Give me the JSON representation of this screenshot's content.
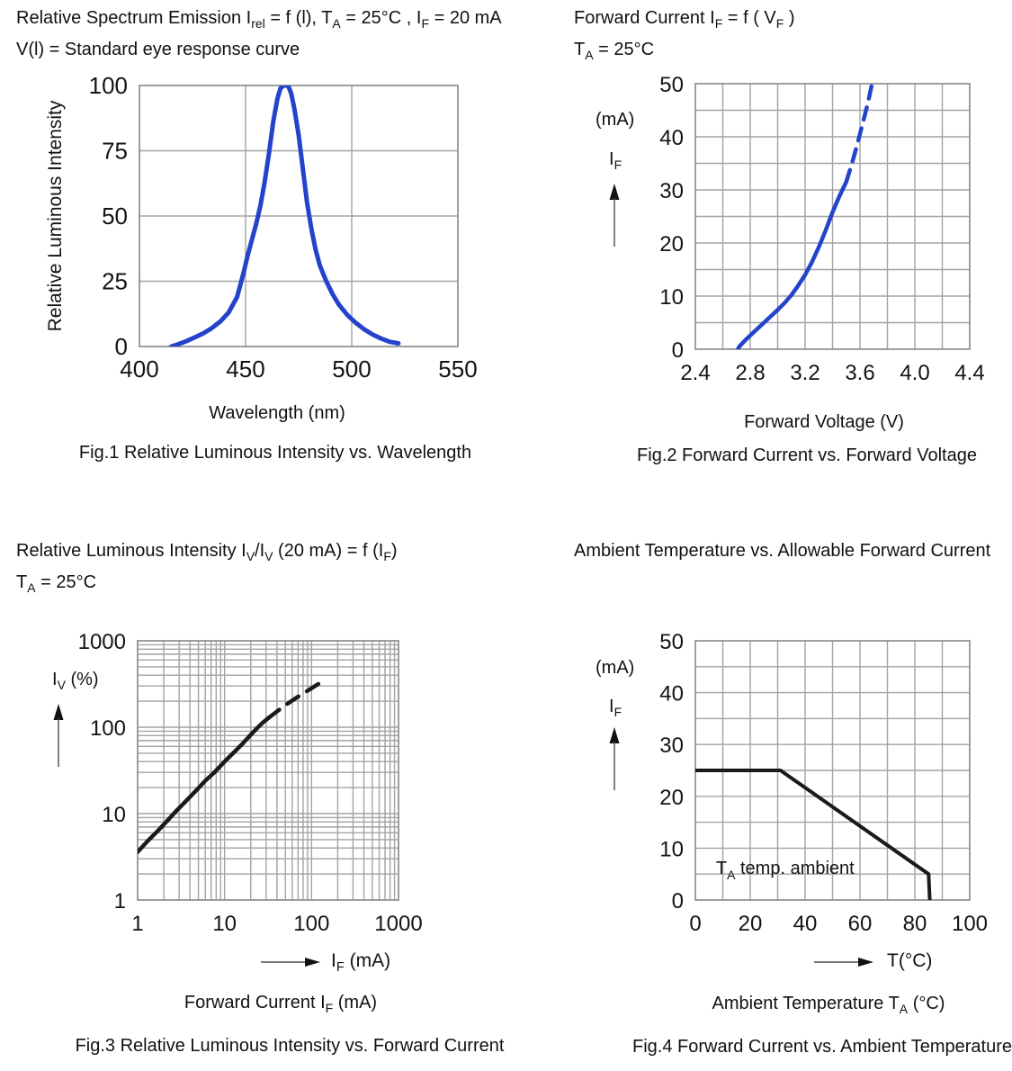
{
  "page_type": "LED datasheet characteristic curves",
  "accent_color": "#2343cb",
  "curve_black": "#1a1a1a",
  "grid_color": "#a3a3a3",
  "chart_data": [
    {
      "id": "fig1",
      "type": "line",
      "header1_html": "Relative Spectrum Emission I<sub>rel</sub> = f (l), T<sub>A</sub> = 25°C , I<sub>F</sub> = 20 mA",
      "header2_html": "V(l) = Standard eye response curve",
      "xlabel": "Wavelength (nm)",
      "ylabel": "Relative Luminous Intensity",
      "caption": "Fig.1 Relative Luminous Intensity vs. Wavelength",
      "x_axis": {
        "scale": "linear",
        "min": 400,
        "max": 550,
        "ticks": [
          "400",
          "450",
          "500",
          "550"
        ],
        "tick_values": [
          400,
          450,
          500,
          550
        ],
        "grid": [
          450,
          500
        ]
      },
      "y_axis": {
        "scale": "linear",
        "min": 0,
        "max": 100,
        "ticks": [
          "0",
          "25",
          "50",
          "75",
          "100"
        ],
        "tick_values": [
          0,
          25,
          50,
          75,
          100
        ],
        "grid": [
          25,
          50,
          75
        ]
      },
      "series": [
        {
          "name": "spectrum",
          "color": "#2343cb",
          "width": 5,
          "dash": null,
          "points": [
            [
              415,
              0
            ],
            [
              418,
              0.8
            ],
            [
              422,
              2
            ],
            [
              426,
              3.5
            ],
            [
              430,
              5
            ],
            [
              434,
              7
            ],
            [
              438,
              9.5
            ],
            [
              442,
              13
            ],
            [
              446,
              19
            ],
            [
              449,
              28
            ],
            [
              451,
              35
            ],
            [
              453,
              41
            ],
            [
              455,
              47
            ],
            [
              457,
              54
            ],
            [
              459,
              63
            ],
            [
              461,
              74
            ],
            [
              463,
              86
            ],
            [
              465,
              95
            ],
            [
              466.5,
              99
            ],
            [
              468,
              100
            ],
            [
              470,
              100
            ],
            [
              471.5,
              97
            ],
            [
              473,
              91
            ],
            [
              475,
              81
            ],
            [
              477,
              68
            ],
            [
              479,
              55
            ],
            [
              481,
              45
            ],
            [
              483,
              37
            ],
            [
              485,
              31
            ],
            [
              488,
              25
            ],
            [
              491,
              20
            ],
            [
              494,
              16
            ],
            [
              498,
              12
            ],
            [
              502,
              9
            ],
            [
              506,
              6.5
            ],
            [
              510,
              4.5
            ],
            [
              514,
              3
            ],
            [
              518,
              1.8
            ],
            [
              522,
              1.2
            ]
          ]
        }
      ],
      "peak_wavelength_nm": 468
    },
    {
      "id": "fig2",
      "type": "line",
      "header1_html": "Forward Current I<sub>F</sub> = f ( V<sub>F</sub> )",
      "header2_html": "T<sub>A</sub> = 25°C",
      "side_label1": "(mA)",
      "side_label2_html": "I<sub>F</sub>",
      "xlabel": "Forward Voltage (V)",
      "caption": "Fig.2 Forward Current vs. Forward Voltage",
      "x_axis": {
        "scale": "linear",
        "min": 2.4,
        "max": 4.4,
        "ticks": [
          "2.4",
          "2.8",
          "3.2",
          "3.6",
          "4.0",
          "4.4"
        ],
        "tick_values": [
          2.4,
          2.8,
          3.2,
          3.6,
          4.0,
          4.4
        ],
        "grid": [
          2.6,
          2.8,
          3.0,
          3.2,
          3.4,
          3.6,
          3.8,
          4.0,
          4.2
        ]
      },
      "y_axis": {
        "scale": "linear",
        "min": 0,
        "max": 50,
        "ticks": [
          "0",
          "10",
          "20",
          "30",
          "40",
          "50"
        ],
        "tick_values": [
          0,
          10,
          20,
          30,
          40,
          50
        ],
        "grid": [
          5,
          10,
          15,
          20,
          25,
          30,
          35,
          40,
          45
        ]
      },
      "series": [
        {
          "name": "iv-solid",
          "color": "#2343cb",
          "width": 4.5,
          "dash": null,
          "points": [
            [
              2.68,
              -1.5
            ],
            [
              2.72,
              0.5
            ],
            [
              2.76,
              1.6
            ],
            [
              2.8,
              2.6
            ],
            [
              2.85,
              3.8
            ],
            [
              2.9,
              5.0
            ],
            [
              2.95,
              6.2
            ],
            [
              3.0,
              7.4
            ],
            [
              3.05,
              8.7
            ],
            [
              3.1,
              10.2
            ],
            [
              3.15,
              12.0
            ],
            [
              3.2,
              14.0
            ],
            [
              3.25,
              16.4
            ],
            [
              3.3,
              19.2
            ],
            [
              3.35,
              22.4
            ],
            [
              3.4,
              25.8
            ],
            [
              3.45,
              28.8
            ],
            [
              3.5,
              31.5
            ]
          ]
        },
        {
          "name": "iv-extrapolated",
          "color": "#2343cb",
          "width": 4.5,
          "dash": "14 10",
          "points": [
            [
              3.5,
              31.5
            ],
            [
              3.54,
              34.8
            ],
            [
              3.58,
              38.5
            ],
            [
              3.62,
              42.5
            ],
            [
              3.66,
              46.6
            ],
            [
              3.7,
              51.5
            ]
          ]
        }
      ]
    },
    {
      "id": "fig3",
      "type": "line",
      "header1_html": "Relative Luminous Intensity I<sub>V</sub>/I<sub>V</sub> (20 mA) = f (I<sub>F</sub>)",
      "header2_html": "T<sub>A</sub> = 25°C",
      "side_label1_html": "I<sub>V</sub> (%)",
      "arrow_label_html": "I<sub>F</sub> (mA)",
      "xlabel_html": "Forward Current I<sub>F</sub> (mA)",
      "caption": "Fig.3 Relative Luminous Intensity vs. Forward Current",
      "x_axis": {
        "scale": "log",
        "min": 1,
        "max": 1000,
        "ticks": [
          "1",
          "10",
          "100",
          "1000"
        ],
        "tick_values": [
          1,
          10,
          100,
          1000
        ]
      },
      "y_axis": {
        "scale": "log",
        "min": 1,
        "max": 1000,
        "ticks": [
          "1",
          "10",
          "100",
          "1000"
        ],
        "tick_values": [
          1,
          10,
          100,
          1000
        ]
      },
      "series": [
        {
          "name": "lum-solid",
          "color": "#1a1a1a",
          "width": 4.5,
          "dash": null,
          "points": [
            [
              1,
              3.6
            ],
            [
              1.3,
              4.8
            ],
            [
              1.7,
              6.3
            ],
            [
              2.2,
              8.3
            ],
            [
              2.8,
              10.8
            ],
            [
              3.6,
              14
            ],
            [
              4.7,
              18.5
            ],
            [
              6,
              24
            ],
            [
              7.5,
              29.5
            ],
            [
              10,
              40
            ],
            [
              13,
              52
            ],
            [
              16,
              64
            ],
            [
              20,
              82
            ],
            [
              24,
              99
            ],
            [
              28,
              115
            ],
            [
              32,
              128
            ]
          ]
        },
        {
          "name": "lum-extrapolated",
          "color": "#1a1a1a",
          "width": 4.5,
          "dash": "15 11",
          "points": [
            [
              32,
              128
            ],
            [
              40,
              152
            ],
            [
              50,
              180
            ],
            [
              65,
              215
            ],
            [
              85,
              255
            ],
            [
              110,
              300
            ],
            [
              140,
              350
            ]
          ]
        }
      ]
    },
    {
      "id": "fig4",
      "type": "line",
      "header1": "Ambient Temperature vs. Allowable Forward Current",
      "side_label1": "(mA)",
      "side_label2_html": "I<sub>F</sub>",
      "arrow_label": "T(°C)",
      "xlabel_html": "Ambient Temperature T<sub>A</sub> (°C)",
      "caption": "Fig.4 Forward Current vs. Ambient Temperature",
      "x_axis": {
        "scale": "linear",
        "min": 0,
        "max": 100,
        "ticks": [
          "0",
          "20",
          "40",
          "60",
          "80",
          "100"
        ],
        "tick_values": [
          0,
          20,
          40,
          60,
          80,
          100
        ],
        "grid": [
          10,
          20,
          30,
          40,
          50,
          60,
          70,
          80,
          90
        ]
      },
      "y_axis": {
        "scale": "linear",
        "min": 0,
        "max": 50,
        "ticks": [
          "0",
          "10",
          "20",
          "30",
          "40",
          "50"
        ],
        "tick_values": [
          0,
          10,
          20,
          30,
          40,
          50
        ],
        "grid": [
          5,
          10,
          15,
          20,
          25,
          30,
          35,
          40,
          45
        ]
      },
      "annotation": {
        "x": 7.5,
        "y": 5,
        "parts": [
          {
            "t": "T"
          },
          {
            "t": "A",
            "sub": true
          },
          {
            "t": " temp. ambient"
          }
        ]
      },
      "series": [
        {
          "name": "derating",
          "color": "#1a1a1a",
          "width": 4,
          "dash": null,
          "points": [
            [
              0,
              25
            ],
            [
              31,
              25
            ],
            [
              85,
              5
            ],
            [
              85.6,
              -2
            ]
          ]
        }
      ]
    }
  ]
}
